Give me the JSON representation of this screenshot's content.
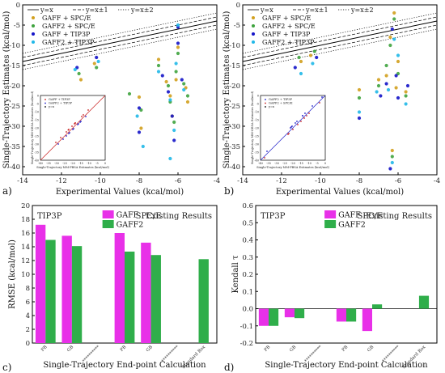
{
  "chart_data": [
    {
      "id": "a",
      "type": "scatter",
      "panel_label": "a)",
      "xlabel": "Experimental Values (kcal/mol)",
      "ylabel": "Single-Trajectory Estimates (kcal/mol)",
      "xlim": [
        -14,
        -4
      ],
      "ylim": [
        -42,
        0
      ],
      "xticks": [
        "-14",
        "-12",
        "-10",
        "-8",
        "-6",
        "-4"
      ],
      "yticks": [
        "0",
        "-5",
        "-10",
        "-15",
        "-20",
        "-25",
        "-30",
        "-35",
        "-40"
      ],
      "reference_lines": [
        {
          "label": "y=x",
          "offset": 0,
          "style": "solid"
        },
        {
          "label": "y=x±1",
          "offset": 1,
          "style": "dashed"
        },
        {
          "label": "y=x±2",
          "offset": 2,
          "style": "dotted"
        }
      ],
      "series": [
        {
          "name": "GAFF + SPC/E",
          "color": "#d2a01e",
          "points": [
            [
              -11.0,
              -18.5
            ],
            [
              -10.3,
              -14.5
            ],
            [
              -8.0,
              -22.8
            ],
            [
              -7.9,
              -30.5
            ],
            [
              -7.0,
              -13.5
            ],
            [
              -6.6,
              -19.0
            ],
            [
              -6.4,
              -22.5
            ],
            [
              -6.3,
              -27.5
            ],
            [
              -6.1,
              -18.5
            ],
            [
              -6.0,
              -10.5
            ],
            [
              -5.6,
              -20.5
            ],
            [
              -5.5,
              -24.0
            ]
          ]
        },
        {
          "name": "GAFF2 + SPC/E",
          "color": "#3ea33e",
          "points": [
            [
              -11.1,
              -17.0
            ],
            [
              -10.2,
              -15.5
            ],
            [
              -8.5,
              -22.0
            ],
            [
              -7.9,
              -26.0
            ],
            [
              -7.0,
              -15.0
            ],
            [
              -6.5,
              -20.0
            ],
            [
              -6.4,
              -24.0
            ],
            [
              -6.2,
              -29.0
            ],
            [
              -6.1,
              -16.5
            ],
            [
              -6.0,
              -12.0
            ],
            [
              -5.7,
              -19.5
            ],
            [
              -5.5,
              -22.5
            ]
          ]
        },
        {
          "name": "GAFF + TIP3P",
          "color": "#1414c8",
          "points": [
            [
              -11.2,
              -15.5
            ],
            [
              -10.2,
              -13.0
            ],
            [
              -8.0,
              -25.5
            ],
            [
              -8.0,
              -31.5
            ],
            [
              -6.8,
              -17.5
            ],
            [
              -6.5,
              -21.5
            ],
            [
              -6.3,
              -27.5
            ],
            [
              -6.2,
              -33.5
            ],
            [
              -6.0,
              -9.5
            ],
            [
              -6.0,
              -5.5
            ],
            [
              -5.8,
              -18.5
            ]
          ]
        },
        {
          "name": "GAFF2 + TIP3P",
          "color": "#20b8e8",
          "points": [
            [
              -11.3,
              -16.0
            ],
            [
              -10.1,
              -14.0
            ],
            [
              -8.1,
              -27.5
            ],
            [
              -7.8,
              -35.0
            ],
            [
              -7.0,
              -16.5
            ],
            [
              -6.4,
              -23.5
            ],
            [
              -6.4,
              -38.0
            ],
            [
              -6.2,
              -31.0
            ],
            [
              -6.1,
              -14.5
            ],
            [
              -6.0,
              -5.0
            ],
            [
              -5.7,
              -21.0
            ]
          ]
        }
      ],
      "inset": {
        "xlabel": "Single-Trajectory MM-PBSA Estimates (kcal/mol)",
        "ylabel": "Single-Trajectory MM-GBSA Estimates (kcal/mol)",
        "xticks": [
          "-40",
          "-35",
          "-30",
          "-25",
          "-20",
          "-15",
          "-10",
          "-5",
          "0"
        ],
        "yticks": [
          "0",
          "-5",
          "-10",
          "-15",
          "-20",
          "-25",
          "-30",
          "-35",
          "-40"
        ],
        "legend": [
          "GAFF + TIP3P",
          "GAFF2 + TIP3P",
          "y=x"
        ],
        "colors": [
          "#c81e1e",
          "#1e1ec8"
        ]
      }
    },
    {
      "id": "b",
      "type": "scatter",
      "panel_label": "b)",
      "xlabel": "Experimental Values (kcal/mol)",
      "ylabel": "Single-Trajectory Estimates (kcal/mol)",
      "xlim": [
        -14,
        -4
      ],
      "ylim": [
        -42,
        0
      ],
      "xticks": [
        "-14",
        "-12",
        "-10",
        "-8",
        "-6",
        "-4"
      ],
      "yticks": [
        "0",
        "-5",
        "-10",
        "-15",
        "-20",
        "-25",
        "-30",
        "-35",
        "-40"
      ],
      "reference_lines": [
        {
          "label": "y=x",
          "offset": 0,
          "style": "solid"
        },
        {
          "label": "y=x±1",
          "offset": 1,
          "style": "dashed"
        },
        {
          "label": "y=x±2",
          "offset": 2,
          "style": "dotted"
        }
      ],
      "series": [
        {
          "name": "GAFF + SPC/E",
          "color": "#d2a01e",
          "points": [
            [
              -11.0,
              -14.0
            ],
            [
              -10.5,
              -12.5
            ],
            [
              -8.0,
              -21.0
            ],
            [
              -7.0,
              -18.5
            ],
            [
              -6.6,
              -17.5
            ],
            [
              -6.4,
              -8.0
            ],
            [
              -6.2,
              -2.0
            ],
            [
              -6.1,
              -20.5
            ],
            [
              -6.0,
              -14.0
            ],
            [
              -5.6,
              -21.5
            ],
            [
              -6.3,
              -36.0
            ]
          ]
        },
        {
          "name": "GAFF2 + SPC/E",
          "color": "#3ea33e",
          "points": [
            [
              -11.1,
              -13.0
            ],
            [
              -10.3,
              -11.5
            ],
            [
              -8.0,
              -23.0
            ],
            [
              -7.0,
              -20.0
            ],
            [
              -6.6,
              -15.0
            ],
            [
              -6.4,
              -10.0
            ],
            [
              -6.2,
              -3.5
            ],
            [
              -6.0,
              -17.0
            ],
            [
              -5.6,
              -22.5
            ],
            [
              -6.3,
              -37.5
            ]
          ]
        },
        {
          "name": "GAFF + TIP3P",
          "color": "#1414c8",
          "points": [
            [
              -11.3,
              -15.5
            ],
            [
              -10.2,
              -13.0
            ],
            [
              -8.0,
              -28.0
            ],
            [
              -6.9,
              -22.5
            ],
            [
              -6.6,
              -19.5
            ],
            [
              -6.3,
              -6.0
            ],
            [
              -6.1,
              -17.5
            ],
            [
              -6.0,
              -23.0
            ],
            [
              -5.5,
              -20.0
            ],
            [
              -6.4,
              -40.5
            ]
          ]
        },
        {
          "name": "GAFF2 + TIP3P",
          "color": "#20b8e8",
          "points": [
            [
              -11.0,
              -17.0
            ],
            [
              -10.4,
              -14.5
            ],
            [
              -8.0,
              -26.5
            ],
            [
              -7.1,
              -21.5
            ],
            [
              -6.5,
              -21.0
            ],
            [
              -6.2,
              -8.5
            ],
            [
              -6.0,
              -12.5
            ],
            [
              -5.6,
              -24.5
            ],
            [
              -6.3,
              -39.0
            ]
          ]
        }
      ],
      "inset": {
        "xlabel": "Single-Trajectory MM-PBSA Estimates (kcal/mol)",
        "ylabel": "Single-Trajectory MM-GBSA Estimates (kcal/mol)",
        "xticks": [
          "-40",
          "-35",
          "-30",
          "-25",
          "-20",
          "-15",
          "-10",
          "-5",
          "0"
        ],
        "yticks": [
          "0",
          "-5",
          "-10",
          "-15",
          "-20",
          "-25",
          "-30",
          "-35",
          "-40"
        ],
        "legend": [
          "GAFF2 + TIP3P",
          "GAFF2 + SPC/E",
          "y=x"
        ],
        "colors": [
          "#1e1ec8",
          "#c81e1e"
        ]
      }
    },
    {
      "id": "c",
      "type": "bar",
      "panel_label": "c)",
      "xlabel": "Single-Trajectory End-point Calculation",
      "ylabel": "RMSE (kcal/mol)",
      "ylim": [
        0,
        20
      ],
      "yticks": [
        "0",
        "2",
        "4",
        "6",
        "8",
        "10",
        "12",
        "14",
        "16",
        "18",
        "20"
      ],
      "categories": [
        "PB",
        "GB",
        "**********",
        "PB",
        "GB",
        "**********",
        "Standard Box"
      ],
      "series": [
        {
          "name": "GAFF",
          "color": "#e830e8",
          "values": [
            17.2,
            15.6,
            null,
            16.0,
            14.6,
            null,
            null
          ]
        },
        {
          "name": "GAFF2",
          "color": "#2fae4a",
          "values": [
            15.0,
            14.1,
            null,
            13.3,
            12.8,
            null,
            12.2
          ]
        }
      ],
      "group_labels": [
        "TIP3P",
        "SPC/E",
        "Existing Results"
      ]
    },
    {
      "id": "d",
      "type": "bar",
      "panel_label": "d)",
      "xlabel": "Single-Trajectory End-point Calculation",
      "ylabel": "Kendall τ",
      "ylim": [
        -0.2,
        0.6
      ],
      "yticks": [
        "-0.2",
        "-0.1",
        "0.0",
        "0.1",
        "0.2",
        "0.3",
        "0.4",
        "0.5",
        "0.6"
      ],
      "categories": [
        "PB",
        "GB",
        "**********",
        "PB",
        "GB",
        "**********",
        "Standard Box"
      ],
      "series": [
        {
          "name": "GAFF",
          "color": "#e830e8",
          "values": [
            -0.1,
            -0.05,
            null,
            -0.075,
            -0.13,
            null,
            null
          ]
        },
        {
          "name": "GAFF2",
          "color": "#2fae4a",
          "values": [
            -0.1,
            -0.055,
            null,
            -0.075,
            0.025,
            null,
            0.075
          ]
        }
      ],
      "group_labels": [
        "TIP3P",
        "SPC/E",
        "Existing Results"
      ]
    }
  ]
}
